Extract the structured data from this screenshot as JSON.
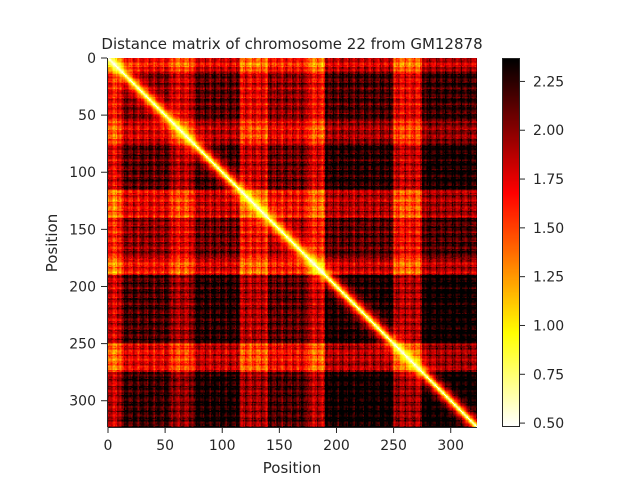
{
  "chart_data": [
    {
      "type": "heatmap",
      "title": "Distance matrix of chromosome 22 from GM12878",
      "xlabel": "Position",
      "ylabel": "Position",
      "size": 323,
      "x_range": [
        0,
        323
      ],
      "y_range": [
        0,
        323
      ],
      "y_inverted": true,
      "x_ticks": [
        0,
        50,
        100,
        150,
        200,
        250,
        300
      ],
      "y_ticks": [
        0,
        50,
        100,
        150,
        200,
        250,
        300
      ],
      "colormap": "hot_r",
      "colorbar": {
        "range": [
          0.48,
          2.37
        ],
        "ticks": [
          "2.25",
          "2.00",
          "1.75",
          "1.50",
          "1.25",
          "1.00",
          "0.75",
          "0.50"
        ],
        "tick_values": [
          2.25,
          2.0,
          1.75,
          1.5,
          1.25,
          1.0,
          0.75,
          0.5
        ]
      },
      "diagonal_value": 0.48,
      "background_value": 1.75,
      "domains": [
        {
          "start": 0,
          "end": 12,
          "level": -0.25
        },
        {
          "start": 12,
          "end": 55,
          "level": 0.15
        },
        {
          "start": 55,
          "end": 75,
          "level": -0.1
        },
        {
          "start": 75,
          "end": 115,
          "level": 0.25
        },
        {
          "start": 115,
          "end": 140,
          "level": -0.15
        },
        {
          "start": 140,
          "end": 175,
          "level": 0.1
        },
        {
          "start": 175,
          "end": 190,
          "level": -0.2
        },
        {
          "start": 190,
          "end": 250,
          "level": 0.3
        },
        {
          "start": 250,
          "end": 275,
          "level": -0.15
        },
        {
          "start": 275,
          "end": 323,
          "level": 0.35
        }
      ]
    }
  ]
}
